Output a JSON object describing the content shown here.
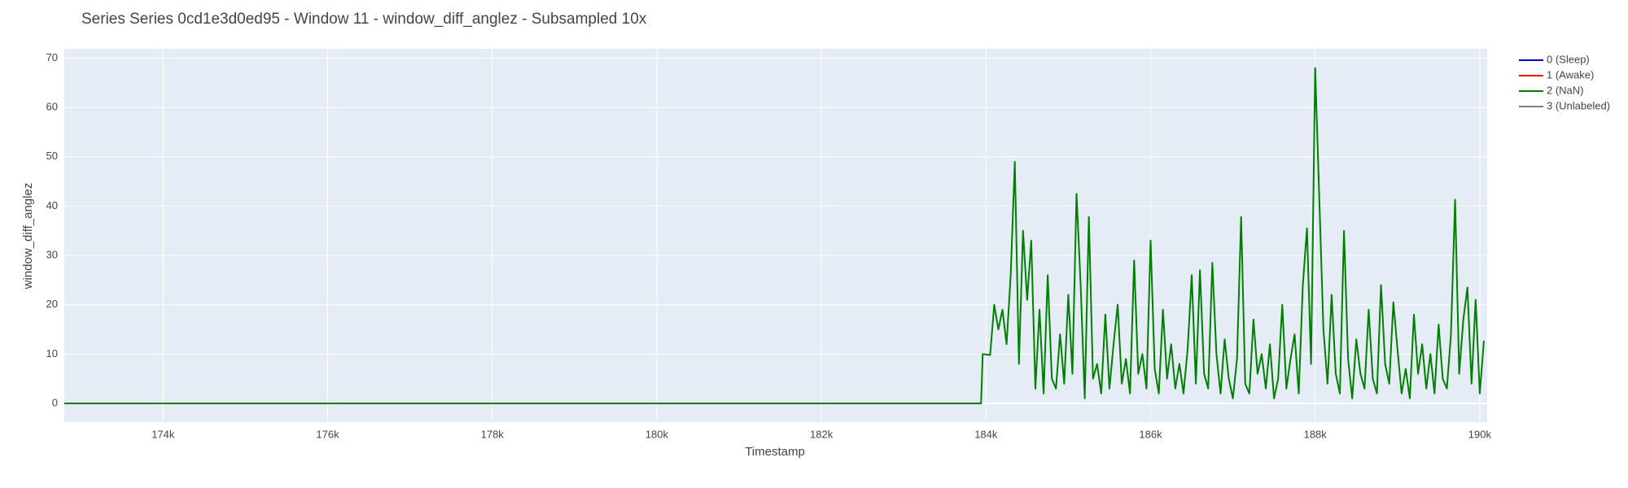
{
  "chart_data": {
    "type": "line",
    "title": "Series Series 0cd1e3d0ed95 - Window 11 - window_diff_anglez - Subsampled 10x",
    "x_label": "Timestamp",
    "y_label": "window_diff_anglez",
    "xlim": [
      172800,
      190090
    ],
    "ylim": [
      -3.8,
      71.9
    ],
    "xticks": [
      {
        "value": 174000,
        "label": "174k"
      },
      {
        "value": 176000,
        "label": "176k"
      },
      {
        "value": 178000,
        "label": "178k"
      },
      {
        "value": 180000,
        "label": "180k"
      },
      {
        "value": 182000,
        "label": "182k"
      },
      {
        "value": 184000,
        "label": "184k"
      },
      {
        "value": 186000,
        "label": "186k"
      },
      {
        "value": 188000,
        "label": "188k"
      },
      {
        "value": 190000,
        "label": "190k"
      }
    ],
    "yticks": [
      0,
      10,
      20,
      30,
      40,
      50,
      60,
      70
    ],
    "grid": true,
    "series": [
      {
        "name": "0 (Sleep)",
        "color": "#0000cc",
        "x": [],
        "values": []
      },
      {
        "name": "1 (Awake)",
        "color": "#ff0000",
        "x": [],
        "values": []
      },
      {
        "name": "2 (NaN)",
        "color": "#008000",
        "x": [
          172800,
          183940,
          183960,
          184050,
          184100,
          184150,
          184200,
          184250,
          184300,
          184350,
          184400,
          184450,
          184500,
          184550,
          184600,
          184650,
          184700,
          184750,
          184800,
          184850,
          184900,
          184950,
          185000,
          185050,
          185100,
          185150,
          185200,
          185250,
          185300,
          185350,
          185400,
          185450,
          185500,
          185550,
          185600,
          185650,
          185700,
          185750,
          185800,
          185850,
          185900,
          185950,
          186000,
          186050,
          186100,
          186150,
          186200,
          186250,
          186300,
          186350,
          186400,
          186450,
          186500,
          186550,
          186600,
          186650,
          186700,
          186750,
          186800,
          186850,
          186900,
          186950,
          187000,
          187050,
          187100,
          187150,
          187200,
          187250,
          187300,
          187350,
          187400,
          187450,
          187500,
          187550,
          187600,
          187650,
          187700,
          187750,
          187800,
          187850,
          187900,
          187950,
          188000,
          188050,
          188100,
          188150,
          188200,
          188250,
          188300,
          188350,
          188400,
          188450,
          188500,
          188550,
          188600,
          188650,
          188700,
          188750,
          188800,
          188850,
          188900,
          188950,
          189000,
          189050,
          189100,
          189150,
          189200,
          189250,
          189300,
          189350,
          189400,
          189450,
          189500,
          189550,
          189600,
          189650,
          189700,
          189750,
          189800,
          189850,
          189900,
          189950,
          190000,
          190050
        ],
        "values": [
          0,
          0,
          10,
          9.8,
          20,
          15,
          19,
          12,
          26,
          49,
          8,
          35,
          21,
          33,
          3,
          19,
          2,
          26,
          5,
          3,
          14,
          4,
          22,
          6,
          42.5,
          24,
          1,
          37.8,
          5,
          8,
          2,
          18,
          3,
          12,
          20,
          4,
          9,
          2,
          29,
          6,
          10,
          3,
          33,
          7,
          2,
          19,
          5,
          12,
          3,
          8,
          2,
          11,
          26,
          4,
          27,
          6,
          3,
          28.5,
          10,
          2,
          13,
          5,
          1,
          9,
          37.8,
          4,
          2,
          17,
          6,
          10,
          3,
          12,
          1,
          5,
          20,
          3,
          9,
          14,
          2,
          24,
          35.5,
          8,
          68,
          41.5,
          15,
          4,
          22,
          6,
          2,
          35,
          9,
          1,
          13,
          6,
          3,
          19,
          5,
          2,
          24,
          8,
          4,
          20.5,
          11,
          2,
          7,
          1,
          18,
          6,
          12,
          3,
          10,
          2,
          16,
          5,
          3,
          14,
          41.3,
          6,
          17,
          23.5,
          4,
          21,
          2,
          12.7
        ]
      },
      {
        "name": "3 (Unlabeled)",
        "color": "#808080",
        "x": [],
        "values": []
      }
    ]
  }
}
